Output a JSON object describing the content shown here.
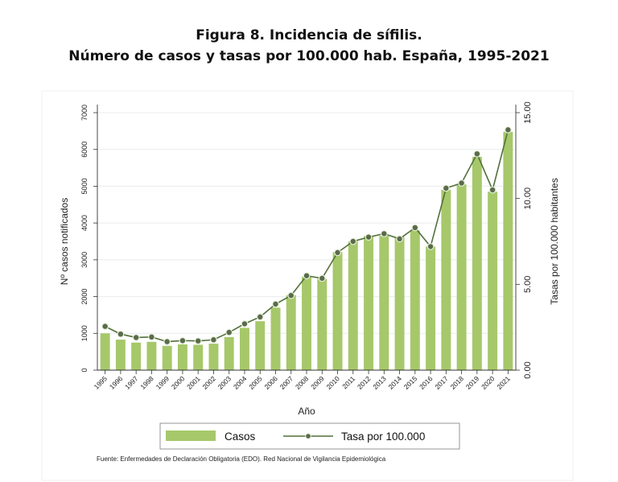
{
  "title_line1": "Figura 8. Incidencia de sífilis.",
  "title_line2": "Número de casos y tasas por 100.000 hab.  España, 1995-2021",
  "source": "Fuente: Enfermedades de Declaración Obligatoria (EDO). Red Nacional de Vigilancia Epidemiológica",
  "chart_data": {
    "type": "bar",
    "xlabel": "Año",
    "ylabel": "Nº casos notificados",
    "y2label": "Tasas por 100.000 habitantes",
    "categories": [
      "1995",
      "1996",
      "1997",
      "1998",
      "1999",
      "2000",
      "2001",
      "2002",
      "2003",
      "2004",
      "2005",
      "2006",
      "2007",
      "2008",
      "2009",
      "2010",
      "2011",
      "2012",
      "2013",
      "2014",
      "2015",
      "2016",
      "2017",
      "2018",
      "2019",
      "2020",
      "2021"
    ],
    "ylim": [
      0,
      7000
    ],
    "yticks": [
      "0",
      "1000",
      "2000",
      "3000",
      "4000",
      "5000",
      "6000",
      "7000"
    ],
    "y2lim": [
      0,
      15
    ],
    "y2ticks": [
      "0.00",
      "5.00",
      "10.00",
      "15.00"
    ],
    "series": [
      {
        "name": "Casos",
        "type": "bar",
        "axis": "left",
        "color": "#a6c86a",
        "values": [
          1000,
          830,
          750,
          770,
          660,
          700,
          690,
          720,
          900,
          1150,
          1330,
          1700,
          2040,
          2540,
          2480,
          3210,
          3500,
          3650,
          3650,
          3620,
          3800,
          3360,
          4900,
          5050,
          5800,
          4850,
          6480
        ]
      },
      {
        "name": "Tasa por 100.000",
        "type": "line",
        "axis": "right",
        "color": "#52713a",
        "marker_color": "#5a6b4a",
        "values": [
          2.55,
          2.1,
          1.9,
          1.93,
          1.66,
          1.72,
          1.7,
          1.77,
          2.2,
          2.7,
          3.1,
          3.85,
          4.35,
          5.5,
          5.35,
          6.85,
          7.5,
          7.75,
          7.95,
          7.65,
          8.3,
          7.2,
          10.6,
          10.9,
          12.6,
          10.5,
          14.0
        ]
      }
    ],
    "legend_position": "bottom",
    "grid": true
  }
}
